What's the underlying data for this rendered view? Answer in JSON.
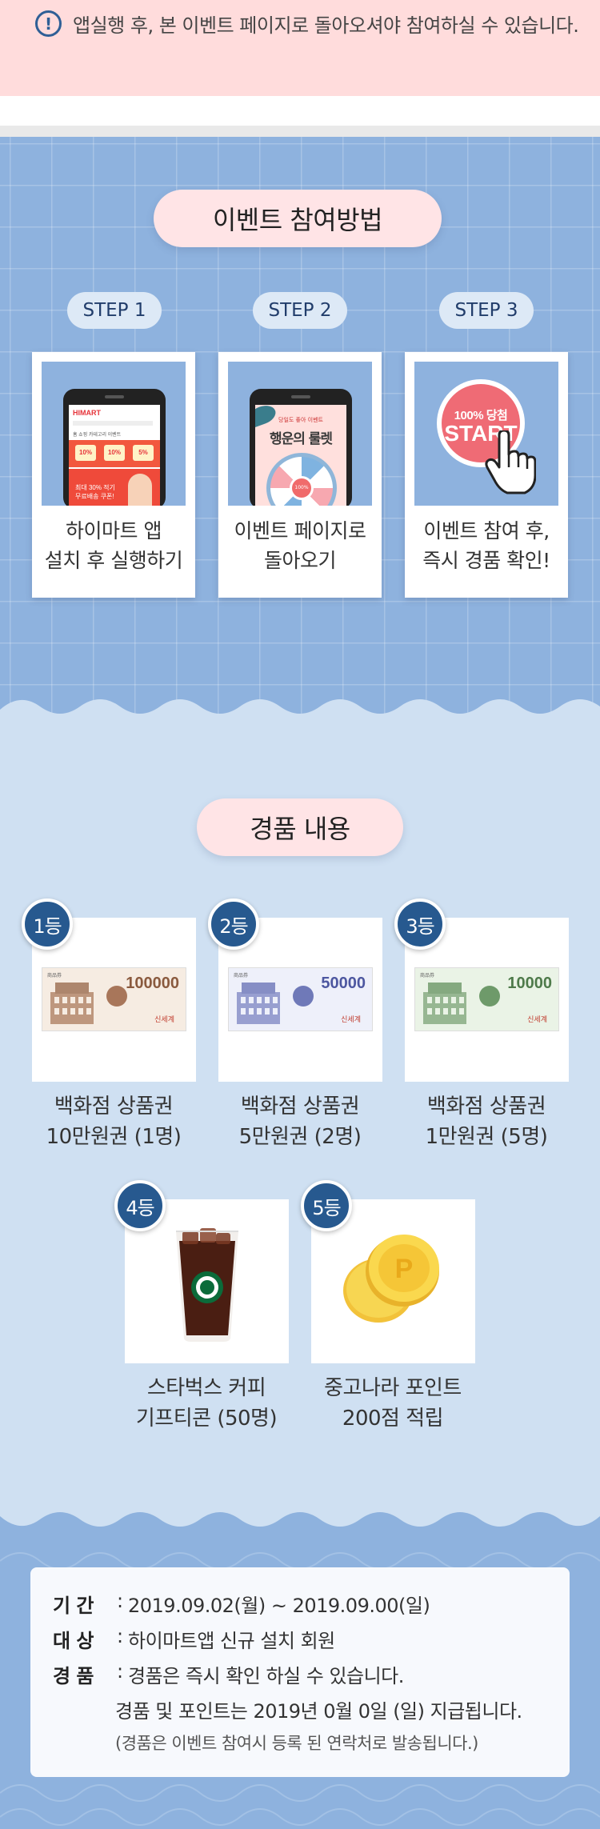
{
  "notice": {
    "icon": "exclamation-circle-icon",
    "text": "앱실행 후, 본 이벤트 페이지로 돌아오셔야 참여하실 수 있습니다."
  },
  "howto": {
    "title": "이벤트 참여방법",
    "steps": [
      {
        "badge": "STEP 1",
        "caption_l1": "하이마트 앱",
        "caption_l2": "설치 후 실행하기",
        "image": "himart-app-phone"
      },
      {
        "badge": "STEP 2",
        "caption_l1": "이벤트 페이지로",
        "caption_l2": "돌아오기",
        "image": "roulette-event-phone"
      },
      {
        "badge": "STEP 3",
        "caption_l1": "이벤트 참여 후,",
        "caption_l2": "즉시 경품 확인!",
        "image": "start-button-hand"
      }
    ],
    "phone1": {
      "logo": "HIMART",
      "menu": "홈 쇼핑 카테고리 이벤트",
      "c1": "10%",
      "c2": "10%",
      "c3": "5%",
      "promo_l1": "최대 30% 적기",
      "promo_l2": "무료배송 쿠폰!"
    },
    "phone2": {
      "small": "당일도 좋아 이벤트",
      "title": "행운의 룰렛",
      "hub": "100%"
    },
    "start": {
      "line1": "100% 당첨",
      "line2": "START"
    }
  },
  "prizes": {
    "title": "경품 내용",
    "items": [
      {
        "rank": "1등",
        "image": "gift-voucher-100000",
        "amount": "100000",
        "brand": "신세계",
        "voucher_label": "商品券",
        "caption_l1": "백화점 상품권",
        "caption_l2": "10만원권 (1명)"
      },
      {
        "rank": "2등",
        "image": "gift-voucher-50000",
        "amount": "50000",
        "brand": "신세계",
        "voucher_label": "商品券",
        "caption_l1": "백화점 상품권",
        "caption_l2": "5만원권 (2명)"
      },
      {
        "rank": "3등",
        "image": "gift-voucher-10000",
        "amount": "10000",
        "brand": "신세계",
        "voucher_label": "商品券",
        "caption_l1": "백화점 상품권",
        "caption_l2": "1만원권 (5명)"
      },
      {
        "rank": "4등",
        "image": "starbucks-iced-coffee",
        "caption_l1": "스타벅스 커피",
        "caption_l2": "기프티콘 (50명)"
      },
      {
        "rank": "5등",
        "image": "gold-point-coins",
        "coin_mark": "P",
        "caption_l1": "중고나라 포인트",
        "caption_l2": "200점 적립"
      }
    ],
    "colors": {
      "voucher1": "#a8765a",
      "voucher2": "#6f79b8",
      "voucher3": "#6e9a6a"
    }
  },
  "info": {
    "period_key": "기 간",
    "period_value": "2019.09.02(월) ~ 2019.09.00(일)",
    "target_key": "대 상",
    "target_value": "하이마트앱 신규 설치 회원",
    "prize_key": "경 품",
    "prize_value": "경품은 즉시 확인 하실 수 있습니다.",
    "prize_value_2": "경품 및 포인트는 2019년 0월 0일 (일) 지급됩니다.",
    "prize_note": "(경품은 이벤트 참여시 등록 된 연락처로 발송됩니다.)"
  },
  "colors": {
    "accent_blue": "#27598f",
    "pink": "#ffe4e6",
    "sky": "#8eb2de",
    "light_sky": "#cfe0f2"
  }
}
